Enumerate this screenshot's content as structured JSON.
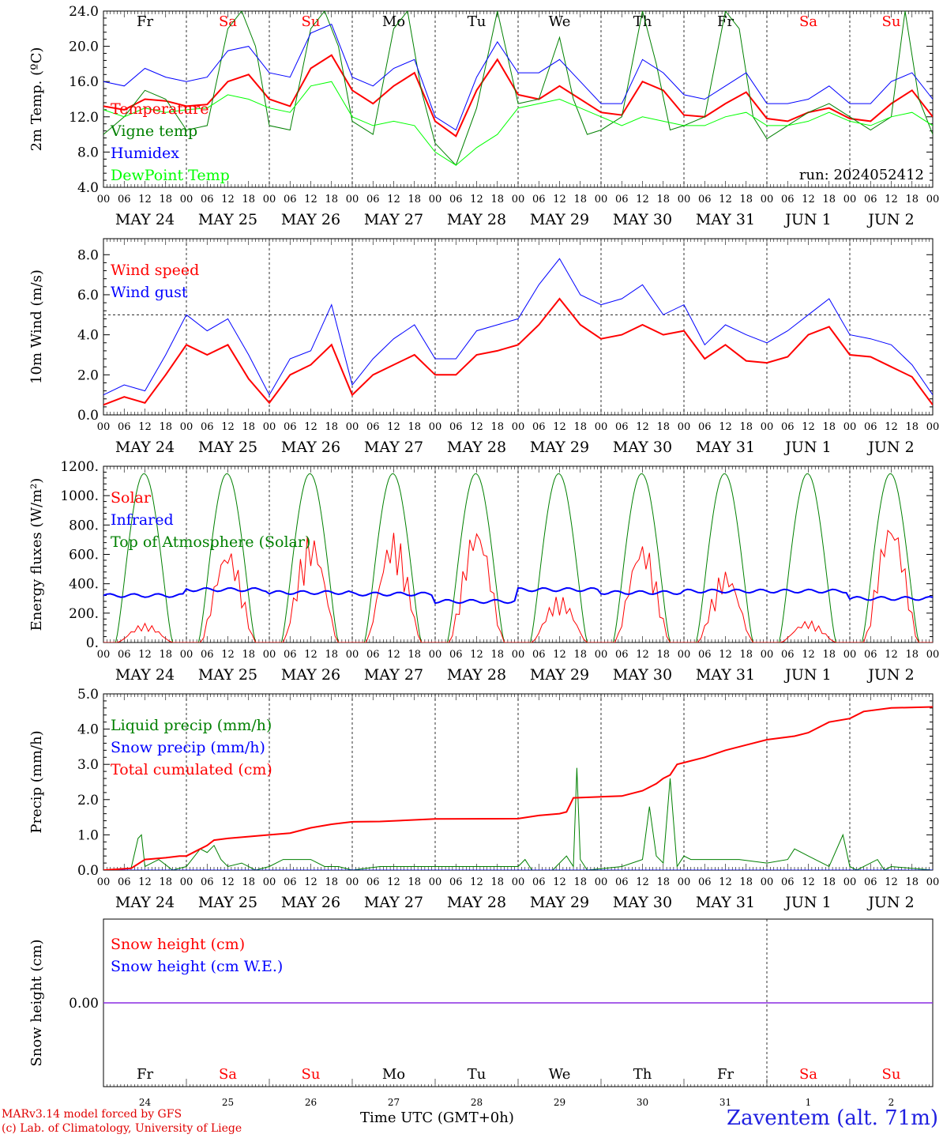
{
  "footer": {
    "model": "MARv3.14 model forced by GFS",
    "credit": "(c) Lab. of Climatology, University of Liege",
    "time_label": "Time UTC (GMT+0h)",
    "month_label": "MAY",
    "station": "Zaventem (alt. 71m)"
  },
  "run_label": "run: 2024052412",
  "chart_data": [
    {
      "type": "line",
      "id": "temp",
      "ylabel": "2m Temp. (ºC)",
      "ylim": [
        4,
        24
      ],
      "yticks": [
        "4.0",
        "8.0",
        "12.0",
        "16.0",
        "20.0",
        "24.0"
      ],
      "weekday_labels": [
        "Fr",
        "Sa",
        "Su",
        "Mo",
        "Tu",
        "We",
        "Th",
        "Fr",
        "Sa",
        "Su"
      ],
      "weekday_colors": [
        "#000000",
        "#ff0000",
        "#ff0000",
        "#000000",
        "#000000",
        "#000000",
        "#000000",
        "#000000",
        "#ff0000",
        "#ff0000"
      ],
      "x_hours_start": 0,
      "x_hours_end": 240,
      "day_labels": [
        "MAY 24",
        "MAY 25",
        "MAY 26",
        "MAY 27",
        "MAY 28",
        "MAY 29",
        "MAY 30",
        "MAY 31",
        "JUN  1",
        "JUN  2"
      ],
      "hour_ticks": [
        "00",
        "06",
        "12",
        "18"
      ],
      "series": [
        {
          "name": "Temperature",
          "color": "#ff0000",
          "width": 2,
          "x": [
            0,
            6,
            12,
            18,
            24,
            30,
            36,
            42,
            48,
            54,
            60,
            66,
            72,
            78,
            84,
            90,
            96,
            102,
            108,
            114,
            120,
            126,
            132,
            138,
            144,
            150,
            156,
            162,
            168,
            174,
            180,
            186,
            192,
            198,
            204,
            210,
            216,
            222,
            228,
            234,
            240
          ],
          "y": [
            13.2,
            12.8,
            14.0,
            13.8,
            13.2,
            13.4,
            16.0,
            16.8,
            14.0,
            13.2,
            17.5,
            19.0,
            15.0,
            13.5,
            15.5,
            17.0,
            11.5,
            9.8,
            15.0,
            18.5,
            14.5,
            14.0,
            15.5,
            14.0,
            12.5,
            12.2,
            16.0,
            15.0,
            12.2,
            12.0,
            13.5,
            14.8,
            11.8,
            11.5,
            12.5,
            13.0,
            11.8,
            11.5,
            13.5,
            15.0,
            12.0
          ]
        },
        {
          "name": "Vigne temp",
          "color": "#008000",
          "width": 1,
          "x": [
            0,
            6,
            12,
            18,
            24,
            30,
            36,
            40,
            44,
            48,
            54,
            60,
            64,
            68,
            72,
            78,
            84,
            88,
            92,
            96,
            102,
            108,
            114,
            120,
            126,
            132,
            136,
            140,
            144,
            150,
            156,
            160,
            164,
            168,
            174,
            180,
            184,
            188,
            192,
            198,
            204,
            210,
            216,
            222,
            228,
            232,
            236,
            240
          ],
          "y": [
            10.0,
            12.0,
            15.0,
            14.0,
            10.5,
            11.0,
            22.0,
            24.0,
            20.0,
            11.0,
            10.5,
            22.0,
            24.0,
            20.0,
            11.5,
            10.0,
            22.0,
            24.0,
            15.0,
            9.0,
            6.5,
            13.0,
            24.0,
            13.5,
            14.0,
            21.0,
            14.0,
            10.0,
            10.5,
            12.0,
            24.0,
            18.0,
            10.5,
            11.0,
            12.0,
            24.0,
            22.0,
            12.0,
            9.5,
            11.0,
            12.5,
            13.5,
            12.0,
            10.5,
            12.0,
            24.0,
            14.0,
            10.0
          ]
        },
        {
          "name": "Humidex",
          "color": "#0000ff",
          "width": 1,
          "x": [
            0,
            6,
            12,
            18,
            24,
            30,
            36,
            42,
            48,
            54,
            60,
            66,
            72,
            78,
            84,
            90,
            96,
            102,
            108,
            114,
            120,
            126,
            132,
            138,
            144,
            150,
            156,
            162,
            168,
            174,
            180,
            186,
            192,
            198,
            204,
            210,
            216,
            222,
            228,
            234,
            240
          ],
          "y": [
            16.0,
            15.5,
            17.5,
            16.5,
            16.0,
            16.5,
            19.5,
            20.0,
            17.0,
            16.5,
            21.5,
            22.5,
            16.5,
            15.5,
            17.5,
            18.5,
            12.0,
            10.5,
            16.5,
            20.5,
            17.0,
            17.0,
            18.5,
            16.0,
            13.5,
            13.5,
            18.5,
            17.0,
            14.5,
            14.0,
            15.5,
            17.0,
            13.5,
            13.5,
            14.0,
            15.5,
            13.5,
            13.5,
            16.0,
            17.0,
            14.0
          ]
        },
        {
          "name": "DewPoint Temp",
          "color": "#00ff00",
          "width": 1,
          "x": [
            0,
            6,
            12,
            18,
            24,
            30,
            36,
            42,
            48,
            54,
            60,
            66,
            72,
            78,
            84,
            90,
            96,
            102,
            108,
            114,
            120,
            126,
            132,
            138,
            144,
            150,
            156,
            162,
            168,
            174,
            180,
            186,
            192,
            198,
            204,
            210,
            216,
            222,
            228,
            234,
            240
          ],
          "y": [
            12.8,
            12.0,
            13.0,
            12.5,
            12.8,
            13.0,
            14.5,
            14.0,
            13.0,
            12.5,
            15.5,
            16.0,
            12.0,
            11.0,
            11.5,
            11.0,
            8.0,
            6.5,
            8.5,
            10.0,
            13.0,
            13.5,
            14.0,
            13.0,
            12.0,
            11.0,
            12.0,
            11.5,
            11.0,
            11.0,
            12.0,
            12.5,
            11.0,
            11.0,
            11.5,
            12.5,
            11.5,
            11.0,
            12.0,
            12.5,
            11.0
          ]
        }
      ]
    },
    {
      "type": "line",
      "id": "wind",
      "ylabel": "10m Wind (m/s)",
      "ylim": [
        0,
        8.8
      ],
      "yticks": [
        "0.0",
        "2.0",
        "4.0",
        "6.0",
        "8.0"
      ],
      "ref_line": 5.0,
      "day_labels": [
        "MAY 24",
        "MAY 25",
        "MAY 26",
        "MAY 27",
        "MAY 28",
        "MAY 29",
        "MAY 30",
        "MAY 31",
        "JUN  1",
        "JUN  2"
      ],
      "hour_ticks": [
        "00",
        "06",
        "12",
        "18"
      ],
      "series": [
        {
          "name": "Wind speed",
          "color": "#ff0000",
          "width": 2,
          "x": [
            0,
            6,
            12,
            18,
            24,
            30,
            36,
            42,
            48,
            54,
            60,
            66,
            72,
            78,
            84,
            90,
            96,
            102,
            108,
            114,
            120,
            126,
            132,
            138,
            144,
            150,
            156,
            162,
            168,
            174,
            180,
            186,
            192,
            198,
            204,
            210,
            216,
            222,
            228,
            234,
            240
          ],
          "y": [
            0.5,
            0.9,
            0.6,
            2.0,
            3.5,
            3.0,
            3.5,
            1.8,
            0.6,
            2.0,
            2.5,
            3.5,
            1.0,
            2.0,
            2.5,
            3.0,
            2.0,
            2.0,
            3.0,
            3.2,
            3.5,
            4.5,
            5.8,
            4.5,
            3.8,
            4.0,
            4.5,
            4.0,
            4.2,
            2.8,
            3.5,
            2.7,
            2.6,
            2.9,
            4.0,
            4.4,
            3.0,
            2.9,
            2.4,
            1.9,
            0.5
          ]
        },
        {
          "name": "Wind gust",
          "color": "#0000ff",
          "width": 1,
          "x": [
            0,
            6,
            12,
            18,
            24,
            30,
            36,
            42,
            48,
            54,
            60,
            66,
            72,
            78,
            84,
            90,
            96,
            102,
            108,
            114,
            120,
            126,
            132,
            138,
            144,
            150,
            156,
            162,
            168,
            174,
            180,
            186,
            192,
            198,
            204,
            210,
            216,
            222,
            228,
            234,
            240
          ],
          "y": [
            1.0,
            1.5,
            1.2,
            3.0,
            5.0,
            4.2,
            4.8,
            3.0,
            1.0,
            2.8,
            3.2,
            5.5,
            1.5,
            2.8,
            3.8,
            4.5,
            2.8,
            2.8,
            4.2,
            4.5,
            4.8,
            6.5,
            7.8,
            6.0,
            5.5,
            5.8,
            6.5,
            5.0,
            5.5,
            3.5,
            4.5,
            4.0,
            3.6,
            4.2,
            5.0,
            5.8,
            4.0,
            3.8,
            3.5,
            2.5,
            1.0
          ]
        }
      ]
    },
    {
      "type": "line",
      "id": "energy",
      "ylabel": "Energy fluxes (W/m²)",
      "ylim": [
        0,
        1200
      ],
      "yticks": [
        "0.",
        "200.",
        "400.",
        "600.",
        "800.",
        "1000.",
        "1200."
      ],
      "day_labels": [
        "MAY 24",
        "MAY 25",
        "MAY 26",
        "MAY 27",
        "MAY 28",
        "MAY 29",
        "MAY 30",
        "MAY 31",
        "JUN  1",
        "JUN  2"
      ],
      "hour_ticks": [
        "00",
        "06",
        "12",
        "18"
      ],
      "toa_peak": 1150,
      "solar_peaks": [
        130,
        660,
        750,
        760,
        820,
        320,
        700,
        500,
        150,
        860
      ],
      "infrared": [
        320,
        360,
        340,
        330,
        280,
        360,
        340,
        350,
        350,
        300
      ],
      "series": [
        {
          "name": "Solar",
          "color": "#ff0000",
          "width": 1
        },
        {
          "name": "Infrared",
          "color": "#0000ff",
          "width": 2
        },
        {
          "name": "Top of Atmosphere (Solar)",
          "color": "#008000",
          "width": 1
        }
      ]
    },
    {
      "type": "line",
      "id": "precip",
      "ylabel": "Precip (mm/h)",
      "ylim": [
        0,
        5
      ],
      "yticks": [
        "0.0",
        "1.0",
        "2.0",
        "3.0",
        "4.0",
        "5.0"
      ],
      "day_labels": [
        "MAY 24",
        "MAY 25",
        "MAY 26",
        "MAY 27",
        "MAY 28",
        "MAY 29",
        "MAY 30",
        "MAY 31",
        "JUN  1",
        "JUN  2"
      ],
      "hour_ticks": [
        "00",
        "06",
        "12",
        "18"
      ],
      "series": [
        {
          "name": "Liquid precip (mm/h)",
          "color": "#008000",
          "width": 1,
          "x": [
            0,
            8,
            10,
            11,
            12,
            16,
            20,
            24,
            28,
            30,
            32,
            34,
            36,
            40,
            44,
            48,
            52,
            56,
            60,
            64,
            68,
            72,
            80,
            96,
            120,
            122,
            124,
            130,
            134,
            136,
            137,
            138,
            140,
            150,
            156,
            158,
            160,
            162,
            164,
            166,
            168,
            170,
            176,
            184,
            192,
            198,
            200,
            204,
            210,
            214,
            216,
            218,
            224,
            226,
            228,
            240
          ],
          "y": [
            0,
            0.05,
            0.9,
            1.0,
            0.1,
            0.3,
            0.0,
            0.1,
            0.6,
            0.5,
            0.7,
            0.3,
            0.1,
            0.2,
            0.0,
            0.1,
            0.3,
            0.3,
            0.3,
            0.1,
            0.1,
            0.0,
            0.1,
            0.1,
            0.1,
            0.3,
            0.0,
            0.0,
            0.4,
            0.1,
            2.9,
            0.3,
            0.0,
            0.1,
            0.3,
            1.8,
            0.4,
            0.2,
            2.6,
            0.1,
            0.4,
            0.3,
            0.3,
            0.3,
            0.2,
            0.3,
            0.6,
            0.4,
            0.1,
            1.0,
            0.1,
            0.0,
            0.3,
            0.0,
            0.1,
            0.0
          ]
        },
        {
          "name": "Snow precip (mm/h)",
          "color": "#0000ff",
          "width": 1,
          "x": [
            0,
            240
          ],
          "y": [
            0,
            0
          ]
        },
        {
          "name": "Total cumulated (cm)",
          "color": "#ff0000",
          "width": 2,
          "x": [
            0,
            8,
            12,
            18,
            22,
            24,
            28,
            30,
            32,
            36,
            42,
            48,
            54,
            60,
            66,
            72,
            80,
            96,
            120,
            126,
            132,
            134,
            136,
            144,
            150,
            156,
            160,
            162,
            164,
            166,
            168,
            174,
            180,
            186,
            192,
            200,
            204,
            210,
            216,
            220,
            228,
            240
          ],
          "y": [
            0,
            0.05,
            0.3,
            0.35,
            0.4,
            0.4,
            0.6,
            0.7,
            0.85,
            0.9,
            0.95,
            1.0,
            1.05,
            1.2,
            1.3,
            1.37,
            1.38,
            1.45,
            1.46,
            1.55,
            1.6,
            1.65,
            2.05,
            2.08,
            2.1,
            2.25,
            2.45,
            2.6,
            2.7,
            3.0,
            3.05,
            3.2,
            3.4,
            3.55,
            3.7,
            3.8,
            3.9,
            4.2,
            4.3,
            4.5,
            4.6,
            4.63
          ]
        }
      ]
    },
    {
      "type": "line",
      "id": "snow",
      "ylabel": "Snow height (cm)",
      "ylim": [
        -1,
        1
      ],
      "yticks": [
        "0.00"
      ],
      "weekday_labels": [
        "Fr",
        "Sa",
        "Su",
        "Mo",
        "Tu",
        "We",
        "Th",
        "Fr",
        "Sa",
        "Su"
      ],
      "weekday_colors": [
        "#000000",
        "#ff0000",
        "#ff0000",
        "#000000",
        "#000000",
        "#000000",
        "#000000",
        "#000000",
        "#ff0000",
        "#ff0000"
      ],
      "day_numbers": [
        "24",
        "25",
        "26",
        "27",
        "28",
        "29",
        "30",
        "31",
        "1",
        "2"
      ],
      "series": [
        {
          "name": "Snow height (cm)",
          "color": "#ff0000",
          "width": 1,
          "x": [
            0,
            240
          ],
          "y": [
            0,
            0
          ]
        },
        {
          "name": "Snow height (cm W.E.)",
          "color": "#0000ff",
          "width": 1,
          "x": [
            0,
            240
          ],
          "y": [
            0,
            0
          ]
        }
      ]
    }
  ]
}
